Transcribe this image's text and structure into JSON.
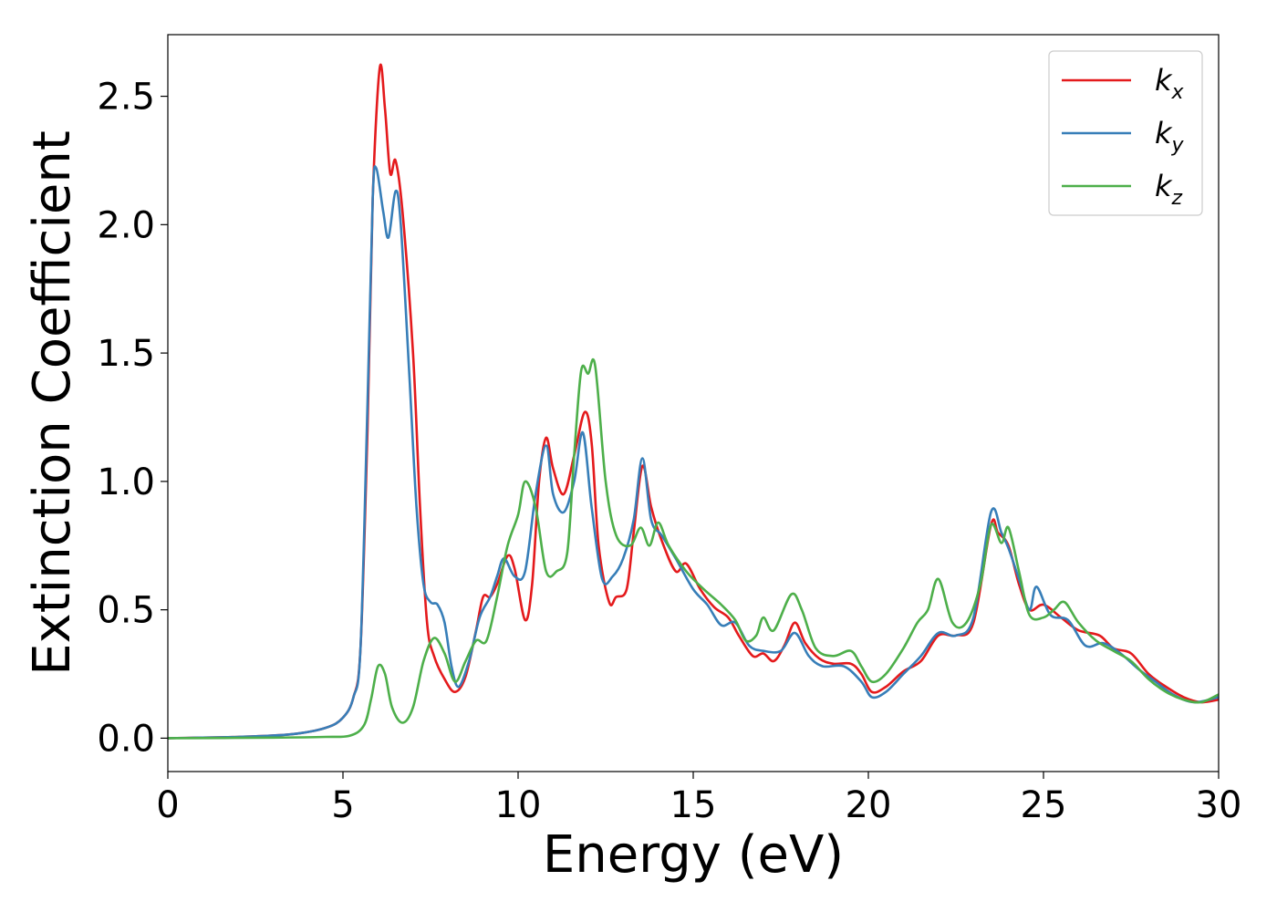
{
  "chart_data": {
    "type": "line",
    "title": "",
    "xlabel": "Energy (eV)",
    "ylabel": "Extinction Coefficient",
    "xlim": [
      0,
      30
    ],
    "ylim": [
      -0.13,
      2.74
    ],
    "xticks": [
      0,
      5,
      10,
      15,
      20,
      25,
      30
    ],
    "xtick_labels": [
      "0",
      "5",
      "10",
      "15",
      "20",
      "25",
      "30"
    ],
    "yticks": [
      0.0,
      0.5,
      1.0,
      1.5,
      2.0,
      2.5
    ],
    "ytick_labels": [
      "0.0",
      "0.5",
      "1.0",
      "1.5",
      "2.0",
      "2.5"
    ],
    "grid": false,
    "legend_position": "top-right",
    "series": [
      {
        "name": "k",
        "subscript": "x",
        "color": "#e41a1c",
        "points": [
          [
            0,
            0.0
          ],
          [
            2,
            0.005
          ],
          [
            3.5,
            0.015
          ],
          [
            4.5,
            0.04
          ],
          [
            5,
            0.08
          ],
          [
            5.3,
            0.16
          ],
          [
            5.5,
            0.35
          ],
          [
            5.7,
            1.2
          ],
          [
            5.85,
            2.1
          ],
          [
            6.05,
            2.61
          ],
          [
            6.2,
            2.45
          ],
          [
            6.35,
            2.2
          ],
          [
            6.5,
            2.25
          ],
          [
            6.7,
            2.05
          ],
          [
            7.0,
            1.5
          ],
          [
            7.2,
            0.9
          ],
          [
            7.4,
            0.45
          ],
          [
            7.6,
            0.32
          ],
          [
            7.9,
            0.23
          ],
          [
            8.2,
            0.18
          ],
          [
            8.5,
            0.24
          ],
          [
            8.8,
            0.42
          ],
          [
            9.0,
            0.55
          ],
          [
            9.2,
            0.55
          ],
          [
            9.4,
            0.6
          ],
          [
            9.7,
            0.71
          ],
          [
            9.9,
            0.66
          ],
          [
            10.2,
            0.46
          ],
          [
            10.4,
            0.6
          ],
          [
            10.6,
            1.0
          ],
          [
            10.8,
            1.17
          ],
          [
            11.0,
            1.05
          ],
          [
            11.3,
            0.95
          ],
          [
            11.6,
            1.1
          ],
          [
            11.9,
            1.27
          ],
          [
            12.1,
            1.15
          ],
          [
            12.3,
            0.75
          ],
          [
            12.6,
            0.53
          ],
          [
            12.8,
            0.55
          ],
          [
            13.1,
            0.58
          ],
          [
            13.3,
            0.8
          ],
          [
            13.55,
            1.06
          ],
          [
            13.8,
            0.9
          ],
          [
            14.1,
            0.77
          ],
          [
            14.5,
            0.65
          ],
          [
            14.8,
            0.68
          ],
          [
            15.2,
            0.58
          ],
          [
            15.6,
            0.51
          ],
          [
            16.0,
            0.47
          ],
          [
            16.3,
            0.4
          ],
          [
            16.7,
            0.32
          ],
          [
            17.0,
            0.33
          ],
          [
            17.3,
            0.3
          ],
          [
            17.6,
            0.36
          ],
          [
            17.9,
            0.45
          ],
          [
            18.2,
            0.37
          ],
          [
            18.6,
            0.31
          ],
          [
            19.0,
            0.29
          ],
          [
            19.5,
            0.29
          ],
          [
            19.8,
            0.25
          ],
          [
            20.1,
            0.18
          ],
          [
            20.5,
            0.2
          ],
          [
            21.0,
            0.26
          ],
          [
            21.5,
            0.3
          ],
          [
            22.0,
            0.4
          ],
          [
            22.5,
            0.4
          ],
          [
            23.0,
            0.45
          ],
          [
            23.5,
            0.83
          ],
          [
            23.7,
            0.8
          ],
          [
            24.0,
            0.75
          ],
          [
            24.3,
            0.6
          ],
          [
            24.6,
            0.5
          ],
          [
            25.0,
            0.52
          ],
          [
            25.5,
            0.47
          ],
          [
            26.0,
            0.42
          ],
          [
            26.6,
            0.4
          ],
          [
            27.0,
            0.35
          ],
          [
            27.5,
            0.33
          ],
          [
            28.0,
            0.25
          ],
          [
            28.5,
            0.2
          ],
          [
            29.0,
            0.16
          ],
          [
            29.5,
            0.14
          ],
          [
            30.0,
            0.15
          ]
        ]
      },
      {
        "name": "k",
        "subscript": "y",
        "color": "#377eb8",
        "points": [
          [
            0,
            0.0
          ],
          [
            2,
            0.005
          ],
          [
            3.5,
            0.015
          ],
          [
            4.5,
            0.04
          ],
          [
            5,
            0.08
          ],
          [
            5.3,
            0.16
          ],
          [
            5.5,
            0.35
          ],
          [
            5.7,
            1.3
          ],
          [
            5.85,
            2.1
          ],
          [
            5.95,
            2.22
          ],
          [
            6.15,
            2.05
          ],
          [
            6.3,
            1.95
          ],
          [
            6.5,
            2.13
          ],
          [
            6.65,
            2.0
          ],
          [
            6.9,
            1.4
          ],
          [
            7.1,
            0.9
          ],
          [
            7.3,
            0.6
          ],
          [
            7.5,
            0.53
          ],
          [
            7.7,
            0.52
          ],
          [
            7.9,
            0.45
          ],
          [
            8.1,
            0.28
          ],
          [
            8.3,
            0.2
          ],
          [
            8.6,
            0.3
          ],
          [
            8.9,
            0.47
          ],
          [
            9.2,
            0.55
          ],
          [
            9.4,
            0.63
          ],
          [
            9.6,
            0.7
          ],
          [
            9.9,
            0.63
          ],
          [
            10.2,
            0.65
          ],
          [
            10.5,
            0.95
          ],
          [
            10.8,
            1.14
          ],
          [
            11.0,
            0.95
          ],
          [
            11.3,
            0.88
          ],
          [
            11.6,
            1.0
          ],
          [
            11.85,
            1.19
          ],
          [
            12.1,
            0.9
          ],
          [
            12.4,
            0.62
          ],
          [
            12.7,
            0.63
          ],
          [
            13.0,
            0.7
          ],
          [
            13.3,
            0.85
          ],
          [
            13.55,
            1.09
          ],
          [
            13.8,
            0.85
          ],
          [
            14.1,
            0.79
          ],
          [
            14.5,
            0.7
          ],
          [
            15.0,
            0.58
          ],
          [
            15.4,
            0.52
          ],
          [
            15.8,
            0.44
          ],
          [
            16.2,
            0.45
          ],
          [
            16.6,
            0.36
          ],
          [
            17.0,
            0.34
          ],
          [
            17.5,
            0.34
          ],
          [
            17.9,
            0.41
          ],
          [
            18.3,
            0.32
          ],
          [
            18.7,
            0.28
          ],
          [
            19.3,
            0.28
          ],
          [
            19.8,
            0.22
          ],
          [
            20.1,
            0.16
          ],
          [
            20.5,
            0.18
          ],
          [
            21.0,
            0.25
          ],
          [
            21.5,
            0.32
          ],
          [
            22.0,
            0.41
          ],
          [
            22.5,
            0.4
          ],
          [
            23.0,
            0.47
          ],
          [
            23.5,
            0.88
          ],
          [
            23.8,
            0.8
          ],
          [
            24.0,
            0.74
          ],
          [
            24.3,
            0.62
          ],
          [
            24.6,
            0.5
          ],
          [
            24.8,
            0.59
          ],
          [
            25.2,
            0.48
          ],
          [
            25.7,
            0.46
          ],
          [
            26.2,
            0.36
          ],
          [
            26.7,
            0.37
          ],
          [
            27.2,
            0.33
          ],
          [
            27.7,
            0.27
          ],
          [
            28.2,
            0.22
          ],
          [
            28.7,
            0.17
          ],
          [
            29.3,
            0.14
          ],
          [
            30.0,
            0.16
          ]
        ]
      },
      {
        "name": "k",
        "subscript": "z",
        "color": "#4daf4a",
        "points": [
          [
            0,
            0.0
          ],
          [
            3,
            0.002
          ],
          [
            4.5,
            0.005
          ],
          [
            5.2,
            0.01
          ],
          [
            5.6,
            0.05
          ],
          [
            5.8,
            0.15
          ],
          [
            6.0,
            0.28
          ],
          [
            6.2,
            0.25
          ],
          [
            6.4,
            0.12
          ],
          [
            6.7,
            0.06
          ],
          [
            7.0,
            0.12
          ],
          [
            7.3,
            0.3
          ],
          [
            7.6,
            0.39
          ],
          [
            7.9,
            0.33
          ],
          [
            8.2,
            0.22
          ],
          [
            8.5,
            0.3
          ],
          [
            8.8,
            0.38
          ],
          [
            9.1,
            0.38
          ],
          [
            9.4,
            0.55
          ],
          [
            9.7,
            0.75
          ],
          [
            10.0,
            0.87
          ],
          [
            10.2,
            1.0
          ],
          [
            10.5,
            0.9
          ],
          [
            10.8,
            0.65
          ],
          [
            11.1,
            0.65
          ],
          [
            11.4,
            0.72
          ],
          [
            11.6,
            1.1
          ],
          [
            11.8,
            1.43
          ],
          [
            12.0,
            1.42
          ],
          [
            12.2,
            1.45
          ],
          [
            12.5,
            1.0
          ],
          [
            12.8,
            0.79
          ],
          [
            13.2,
            0.75
          ],
          [
            13.5,
            0.82
          ],
          [
            13.75,
            0.75
          ],
          [
            14.0,
            0.84
          ],
          [
            14.3,
            0.75
          ],
          [
            14.8,
            0.65
          ],
          [
            15.3,
            0.58
          ],
          [
            15.8,
            0.52
          ],
          [
            16.2,
            0.46
          ],
          [
            16.5,
            0.38
          ],
          [
            16.8,
            0.4
          ],
          [
            17.0,
            0.47
          ],
          [
            17.3,
            0.42
          ],
          [
            17.8,
            0.56
          ],
          [
            18.1,
            0.5
          ],
          [
            18.5,
            0.35
          ],
          [
            19.0,
            0.32
          ],
          [
            19.5,
            0.34
          ],
          [
            19.8,
            0.28
          ],
          [
            20.1,
            0.22
          ],
          [
            20.5,
            0.25
          ],
          [
            21.0,
            0.35
          ],
          [
            21.4,
            0.45
          ],
          [
            21.7,
            0.5
          ],
          [
            22.0,
            0.62
          ],
          [
            22.4,
            0.45
          ],
          [
            22.8,
            0.45
          ],
          [
            23.2,
            0.6
          ],
          [
            23.5,
            0.83
          ],
          [
            23.8,
            0.76
          ],
          [
            24.0,
            0.82
          ],
          [
            24.3,
            0.65
          ],
          [
            24.6,
            0.48
          ],
          [
            25.0,
            0.47
          ],
          [
            25.3,
            0.5
          ],
          [
            25.6,
            0.53
          ],
          [
            26.0,
            0.45
          ],
          [
            26.5,
            0.38
          ],
          [
            27.0,
            0.34
          ],
          [
            27.5,
            0.3
          ],
          [
            28.0,
            0.23
          ],
          [
            28.5,
            0.18
          ],
          [
            29.0,
            0.15
          ],
          [
            29.5,
            0.14
          ],
          [
            30.0,
            0.17
          ]
        ]
      }
    ]
  }
}
